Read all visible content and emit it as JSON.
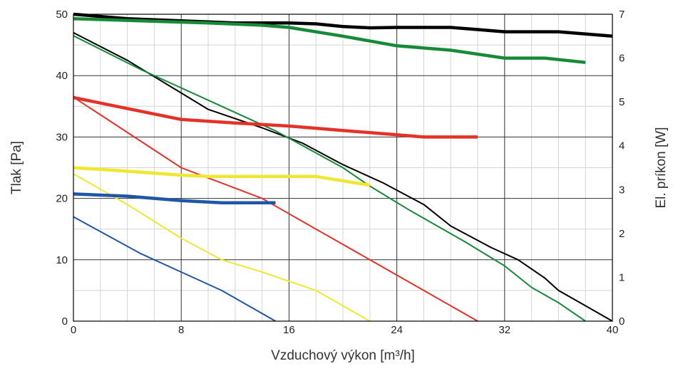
{
  "chart_data": {
    "type": "line",
    "xlabel": "Vzduchový výkon [m³/h]",
    "ylabel": "Tlak [Pa]",
    "y2label": "El. príkon [W]",
    "xlim": [
      0,
      40
    ],
    "ylim": [
      0,
      50
    ],
    "y2lim": [
      0,
      7
    ],
    "x_ticks": [
      "0",
      "8",
      "16",
      "24",
      "32",
      "40"
    ],
    "y_ticks": [
      "0",
      "10",
      "20",
      "30",
      "40",
      "50"
    ],
    "y2_ticks": [
      "0",
      "1",
      "2",
      "3",
      "4",
      "5",
      "6",
      "7"
    ],
    "grid": true,
    "series": [
      {
        "color": "#000000",
        "kind": "pressure",
        "axis": "left",
        "x": [
          0,
          4,
          7,
          10,
          14,
          17,
          20,
          23,
          26,
          28,
          31,
          33,
          35,
          36,
          38,
          40
        ],
        "y": [
          47,
          42.5,
          38.5,
          34.5,
          31.5,
          29,
          25.5,
          22.5,
          19,
          15.5,
          12,
          10,
          7,
          5,
          2.5,
          0
        ]
      },
      {
        "color": "#168a38",
        "kind": "pressure",
        "axis": "left",
        "x": [
          0,
          5,
          10,
          15,
          20,
          22,
          25,
          29,
          32,
          34,
          36,
          38
        ],
        "y": [
          46.5,
          41,
          36,
          31,
          25,
          22,
          18,
          13,
          9,
          5.5,
          3,
          0
        ]
      },
      {
        "color": "#e53228",
        "kind": "pressure",
        "axis": "left",
        "x": [
          0,
          8,
          14,
          18,
          22,
          26,
          30
        ],
        "y": [
          36.5,
          25,
          20,
          15,
          10,
          5,
          0
        ]
      },
      {
        "color": "#f0e830",
        "kind": "pressure",
        "axis": "left",
        "x": [
          0,
          4,
          8,
          11,
          14,
          18,
          20,
          22
        ],
        "y": [
          24,
          19,
          13.5,
          10,
          8,
          5,
          2.5,
          0
        ]
      },
      {
        "color": "#1f56a8",
        "kind": "pressure",
        "axis": "left",
        "x": [
          0,
          5,
          11,
          15
        ],
        "y": [
          17,
          11,
          5,
          0
        ]
      },
      {
        "color": "#000000",
        "kind": "power",
        "axis": "right",
        "x": [
          0,
          4,
          8,
          12,
          16,
          18,
          20,
          22,
          24,
          28,
          30,
          32,
          36,
          40
        ],
        "y": [
          7,
          6.9,
          6.85,
          6.8,
          6.8,
          6.78,
          6.72,
          6.69,
          6.7,
          6.7,
          6.65,
          6.6,
          6.6,
          6.5
        ]
      },
      {
        "color": "#168a38",
        "kind": "power",
        "axis": "right",
        "x": [
          0,
          5,
          10,
          14,
          16,
          20,
          24,
          28,
          32,
          35,
          38
        ],
        "y": [
          6.9,
          6.85,
          6.8,
          6.75,
          6.7,
          6.5,
          6.28,
          6.18,
          6.0,
          6.0,
          5.9
        ]
      },
      {
        "color": "#e53228",
        "kind": "power",
        "axis": "right",
        "x": [
          0,
          4,
          8,
          12,
          16,
          20,
          24,
          26,
          30
        ],
        "y": [
          5.1,
          4.85,
          4.6,
          4.52,
          4.45,
          4.35,
          4.25,
          4.2,
          4.2
        ]
      },
      {
        "color": "#f0e830",
        "kind": "power",
        "axis": "right",
        "x": [
          0,
          4,
          8,
          10,
          14,
          18,
          22
        ],
        "y": [
          3.5,
          3.42,
          3.33,
          3.3,
          3.3,
          3.3,
          3.1
        ]
      },
      {
        "color": "#1f56a8",
        "kind": "power",
        "axis": "right",
        "x": [
          0,
          4,
          8,
          11,
          15
        ],
        "y": [
          2.9,
          2.85,
          2.75,
          2.7,
          2.7
        ]
      }
    ]
  }
}
